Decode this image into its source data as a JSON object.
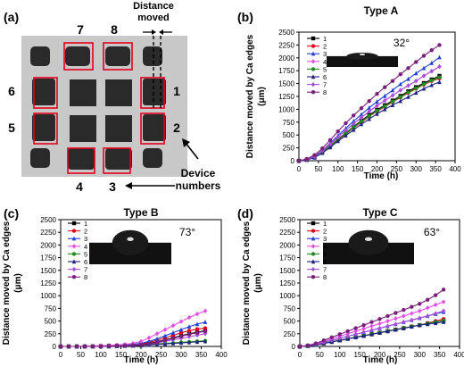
{
  "panels": {
    "a": {
      "label": "(a)",
      "annotation_top": [
        "Distance",
        "moved"
      ],
      "annotation_bottom": [
        "Device",
        "numbers"
      ],
      "device_labels": [
        "1",
        "2",
        "3",
        "4",
        "5",
        "6",
        "7",
        "8"
      ]
    }
  },
  "colors": {
    "series": [
      "#000000",
      "#e3001b",
      "#1f3fd6",
      "#e64ce6",
      "#1f8f1f",
      "#1a237e",
      "#a64fd9",
      "#7a1f7a"
    ],
    "highlight_box": "#e3001b",
    "pad_dark": "#2a2a2a",
    "substrate": "#c8c8c8"
  },
  "chart_data": [
    {
      "panel_label": "(b)",
      "type": "line",
      "title": "Type A",
      "contact_angle": "32°",
      "xlabel": "Time (h)",
      "ylabel": "Distance moved by Ca edges (μm)",
      "xlim": [
        0,
        400
      ],
      "ylim": [
        0,
        2500
      ],
      "xticks": [
        0,
        50,
        100,
        150,
        200,
        250,
        300,
        350,
        400
      ],
      "yticks": [
        0,
        250,
        500,
        750,
        1000,
        1250,
        1500,
        1750,
        2000,
        2250,
        2500
      ],
      "x": [
        0,
        20,
        40,
        60,
        80,
        100,
        120,
        140,
        160,
        180,
        200,
        220,
        240,
        260,
        280,
        300,
        320,
        340,
        360
      ],
      "series": [
        {
          "name": "1",
          "values": [
            0,
            20,
            70,
            170,
            290,
            420,
            540,
            660,
            780,
            890,
            990,
            1080,
            1170,
            1260,
            1350,
            1430,
            1510,
            1580,
            1650
          ]
        },
        {
          "name": "2",
          "values": [
            0,
            20,
            70,
            160,
            280,
            400,
            520,
            640,
            750,
            860,
            960,
            1050,
            1140,
            1230,
            1320,
            1400,
            1480,
            1550,
            1600
          ]
        },
        {
          "name": "3",
          "values": [
            0,
            30,
            90,
            200,
            340,
            490,
            630,
            770,
            900,
            1030,
            1150,
            1260,
            1370,
            1490,
            1590,
            1700,
            1800,
            1900,
            2010
          ]
        },
        {
          "name": "4",
          "values": [
            0,
            25,
            80,
            190,
            320,
            460,
            590,
            720,
            840,
            960,
            1070,
            1170,
            1270,
            1370,
            1460,
            1550,
            1650,
            1740,
            1830
          ]
        },
        {
          "name": "5",
          "values": [
            0,
            20,
            70,
            170,
            290,
            410,
            530,
            650,
            760,
            870,
            970,
            1060,
            1150,
            1240,
            1330,
            1410,
            1490,
            1560,
            1620
          ]
        },
        {
          "name": "6",
          "values": [
            0,
            15,
            60,
            150,
            260,
            380,
            490,
            600,
            710,
            810,
            910,
            1000,
            1080,
            1160,
            1240,
            1320,
            1400,
            1470,
            1530
          ]
        },
        {
          "name": "7",
          "values": [
            0,
            25,
            80,
            190,
            320,
            460,
            590,
            720,
            840,
            960,
            1070,
            1170,
            1270,
            1370,
            1460,
            1550,
            1650,
            1740,
            1830
          ]
        },
        {
          "name": "8",
          "values": [
            0,
            35,
            110,
            240,
            400,
            570,
            730,
            880,
            1020,
            1160,
            1300,
            1430,
            1550,
            1680,
            1800,
            1920,
            2040,
            2150,
            2250
          ]
        }
      ],
      "legend": "top-left"
    },
    {
      "panel_label": "(c)",
      "type": "line",
      "title": "Type B",
      "contact_angle": "73°",
      "xlabel": "Time (h)",
      "ylabel": "Distance moved by Ca edges (μm)",
      "xlim": [
        0,
        400
      ],
      "ylim": [
        0,
        2500
      ],
      "xticks": [
        0,
        50,
        100,
        150,
        200,
        250,
        300,
        350,
        400
      ],
      "yticks": [
        0,
        250,
        500,
        750,
        1000,
        1250,
        1500,
        1750,
        2000,
        2250,
        2500
      ],
      "x": [
        0,
        20,
        40,
        60,
        80,
        100,
        120,
        140,
        160,
        180,
        200,
        220,
        240,
        260,
        280,
        300,
        320,
        340,
        360
      ],
      "series": [
        {
          "name": "1",
          "values": [
            0,
            0,
            0,
            0,
            0,
            5,
            10,
            15,
            20,
            25,
            40,
            60,
            90,
            130,
            170,
            210,
            250,
            280,
            310
          ]
        },
        {
          "name": "2",
          "values": [
            0,
            0,
            0,
            0,
            0,
            5,
            10,
            15,
            20,
            30,
            50,
            80,
            120,
            170,
            220,
            270,
            310,
            340,
            360
          ]
        },
        {
          "name": "3",
          "values": [
            0,
            0,
            0,
            0,
            5,
            10,
            15,
            20,
            30,
            40,
            60,
            100,
            150,
            210,
            270,
            330,
            390,
            440,
            480
          ]
        },
        {
          "name": "4",
          "values": [
            0,
            0,
            0,
            5,
            10,
            15,
            20,
            30,
            40,
            60,
            100,
            170,
            250,
            330,
            410,
            490,
            570,
            640,
            700
          ]
        },
        {
          "name": "5",
          "values": [
            0,
            0,
            0,
            0,
            0,
            0,
            5,
            10,
            15,
            20,
            30,
            40,
            50,
            60,
            70,
            80,
            90,
            100,
            110
          ]
        },
        {
          "name": "6",
          "values": [
            0,
            0,
            0,
            0,
            0,
            0,
            0,
            5,
            10,
            15,
            20,
            30,
            40,
            50,
            60,
            70,
            80,
            90,
            100
          ]
        },
        {
          "name": "7",
          "values": [
            0,
            0,
            0,
            0,
            0,
            5,
            10,
            15,
            20,
            25,
            35,
            50,
            70,
            100,
            130,
            160,
            190,
            220,
            250
          ]
        },
        {
          "name": "8",
          "values": [
            0,
            0,
            0,
            0,
            0,
            0,
            5,
            10,
            15,
            20,
            30,
            50,
            80,
            120,
            160,
            200,
            240,
            270,
            300
          ]
        }
      ],
      "legend": "top-left"
    },
    {
      "panel_label": "(d)",
      "type": "line",
      "title": "Type C",
      "contact_angle": "63°",
      "xlabel": "Time (h)",
      "ylabel": "Distance moved by Ca edges (μm)",
      "xlim": [
        0,
        400
      ],
      "ylim": [
        0,
        2500
      ],
      "xticks": [
        0,
        50,
        100,
        150,
        200,
        250,
        300,
        350,
        400
      ],
      "yticks": [
        0,
        250,
        500,
        750,
        1000,
        1250,
        1500,
        1750,
        2000,
        2250,
        2500
      ],
      "x": [
        0,
        20,
        40,
        60,
        80,
        100,
        120,
        140,
        160,
        180,
        200,
        220,
        240,
        260,
        280,
        300,
        320,
        340,
        360
      ],
      "series": [
        {
          "name": "1",
          "values": [
            0,
            10,
            30,
            60,
            90,
            120,
            150,
            180,
            210,
            240,
            270,
            300,
            330,
            360,
            390,
            420,
            450,
            480,
            510
          ]
        },
        {
          "name": "2",
          "values": [
            0,
            10,
            30,
            60,
            90,
            120,
            150,
            180,
            210,
            240,
            270,
            300,
            330,
            360,
            390,
            420,
            460,
            500,
            540
          ]
        },
        {
          "name": "3",
          "values": [
            0,
            15,
            40,
            80,
            120,
            160,
            200,
            240,
            280,
            320,
            360,
            400,
            440,
            480,
            520,
            560,
            600,
            640,
            680
          ]
        },
        {
          "name": "4",
          "values": [
            0,
            20,
            50,
            100,
            150,
            200,
            250,
            300,
            350,
            400,
            450,
            500,
            550,
            600,
            650,
            700,
            760,
            820,
            880
          ]
        },
        {
          "name": "5",
          "values": [
            0,
            10,
            30,
            60,
            90,
            120,
            150,
            180,
            210,
            240,
            270,
            300,
            330,
            360,
            390,
            420,
            450,
            480,
            510
          ]
        },
        {
          "name": "6",
          "values": [
            0,
            10,
            30,
            60,
            90,
            120,
            150,
            180,
            210,
            240,
            270,
            300,
            330,
            360,
            390,
            420,
            440,
            460,
            480
          ]
        },
        {
          "name": "7",
          "values": [
            0,
            15,
            40,
            80,
            120,
            160,
            200,
            240,
            280,
            320,
            360,
            400,
            440,
            480,
            520,
            560,
            600,
            650,
            700
          ]
        },
        {
          "name": "8",
          "values": [
            0,
            20,
            60,
            120,
            180,
            240,
            300,
            360,
            420,
            480,
            540,
            600,
            660,
            720,
            780,
            840,
            920,
            1010,
            1120
          ]
        }
      ],
      "legend": "top-left"
    }
  ]
}
